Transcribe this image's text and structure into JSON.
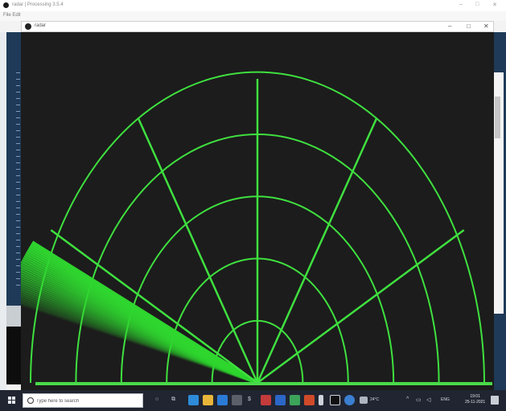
{
  "back_window": {
    "title": "radar | Processing 3.5.4",
    "menu": "File  Edit",
    "controls": [
      "–",
      "□",
      "✕"
    ]
  },
  "sketch_window": {
    "title": "radar",
    "controls": [
      "–",
      "□",
      "✕"
    ]
  },
  "radar": {
    "colors": {
      "background": "#1c1c1c",
      "line": "#3fe03f",
      "sweep": "#2fd62f",
      "baseline": "#49d949"
    },
    "rings": 5,
    "angle_lines_deg": [
      30,
      60,
      90,
      120,
      150
    ],
    "sweep_angle_deg": 148,
    "sweep_trail_deg": 14
  },
  "taskbar": {
    "search_placeholder": "Type here to search",
    "weather": "24°C",
    "language": "ENG",
    "time": "19:01",
    "date": "25-11-2021",
    "colors": {
      "bar": "#202531",
      "edge": "#2e8bd8",
      "files": "#e8b739",
      "store": "#2a7bd6",
      "mail": "#5a5f6a",
      "shield": "#c43b3b",
      "word": "#2b67c7",
      "chrome": "#3ca35a",
      "ppt": "#d04a2a",
      "pen": "#cfd4dc",
      "processing": "#101010",
      "dev": "#3b7fd0"
    }
  }
}
